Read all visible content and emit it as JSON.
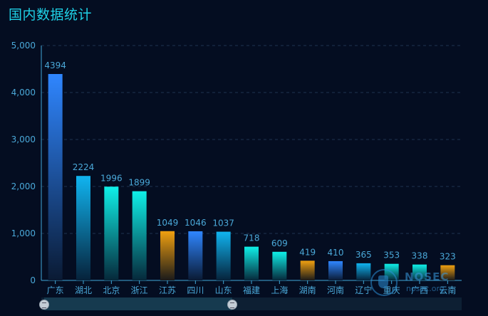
{
  "title": "国内数据统计",
  "watermark": {
    "brand": "NOSEC",
    "sub": "nosec.org"
  },
  "chart_data": {
    "type": "bar",
    "categories": [
      "广东",
      "湖北",
      "北京",
      "浙江",
      "江苏",
      "四川",
      "山东",
      "福建",
      "上海",
      "湖南",
      "河南",
      "辽宁",
      "重庆",
      "广西",
      "云南"
    ],
    "values": [
      4394,
      2224,
      1996,
      1899,
      1049,
      1046,
      1037,
      718,
      609,
      419,
      410,
      365,
      353,
      338,
      323
    ],
    "ylim": [
      0,
      5000
    ],
    "yticks": [
      0,
      1000,
      2000,
      3000,
      4000,
      5000
    ],
    "ytick_labels": [
      "0",
      "1,000",
      "2,000",
      "3,000",
      "4,000",
      "5,000"
    ],
    "grid": true,
    "data_labels": true,
    "colors": {
      "blue": [
        "#2f86ff",
        "#0a1a33"
      ],
      "skyblue": [
        "#10b4f0",
        "#06223a"
      ],
      "cyan": [
        "#0ff0e8",
        "#06283a"
      ],
      "orange": [
        "#f0a010",
        "#1a1a1a"
      ],
      "axis": "#3fa7d6",
      "label": "#4aa8d8",
      "grid": "#1e3350"
    },
    "bar_color_keys": [
      "blue",
      "skyblue",
      "cyan",
      "cyan",
      "orange",
      "blue",
      "skyblue",
      "cyan",
      "cyan",
      "orange",
      "blue",
      "skyblue",
      "cyan",
      "cyan",
      "orange"
    ]
  }
}
